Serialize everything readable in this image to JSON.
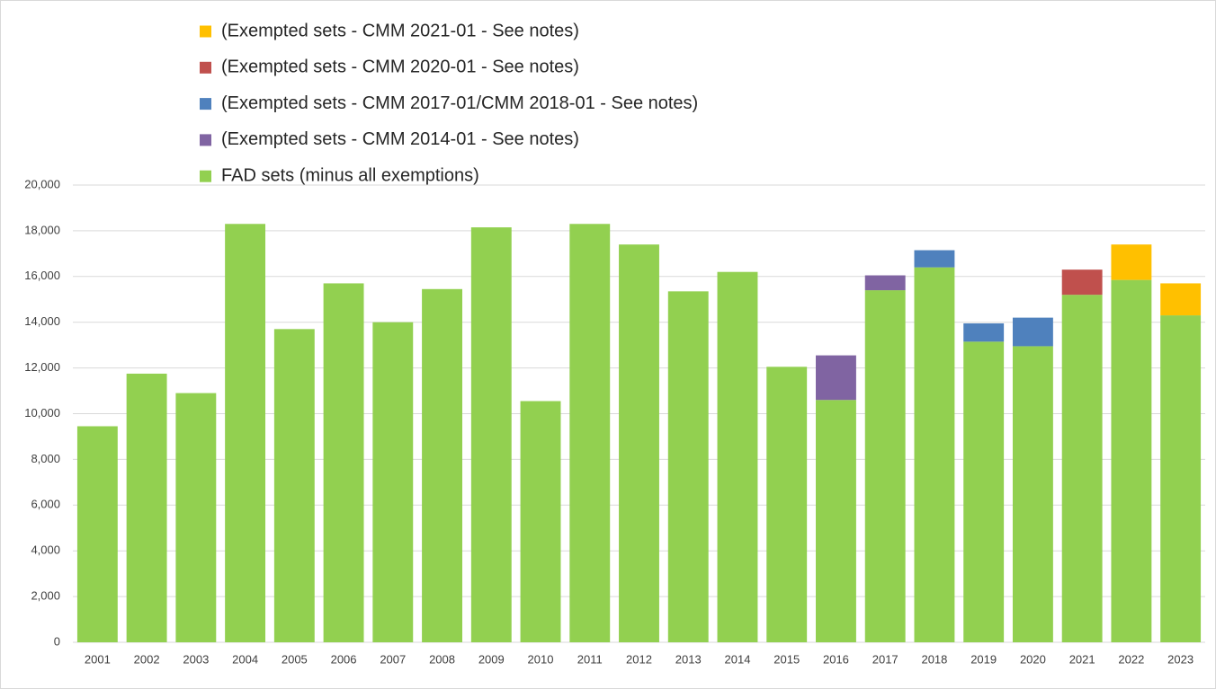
{
  "chart_data": {
    "type": "stacked-bar",
    "categories": [
      "2001",
      "2002",
      "2003",
      "2004",
      "2005",
      "2006",
      "2007",
      "2008",
      "2009",
      "2010",
      "2011",
      "2012",
      "2013",
      "2014",
      "2015",
      "2016",
      "2017",
      "2018",
      "2019",
      "2020",
      "2021",
      "2022",
      "2023"
    ],
    "series": [
      {
        "name": "FAD sets (minus all exemptions)",
        "color": "#92d050",
        "values": [
          9450,
          11750,
          10900,
          18300,
          13700,
          15700,
          14000,
          15450,
          18150,
          10550,
          18300,
          17400,
          15350,
          16200,
          12050,
          10600,
          15400,
          16400,
          13150,
          12950,
          15200,
          15850,
          14300
        ]
      },
      {
        "name": "(Exempted sets - CMM 2014-01 - See notes)",
        "color": "#8064a2",
        "values": [
          null,
          null,
          null,
          null,
          null,
          null,
          null,
          null,
          null,
          null,
          null,
          null,
          null,
          null,
          null,
          1950,
          650,
          null,
          null,
          null,
          null,
          null,
          null
        ]
      },
      {
        "name": "(Exempted sets - CMM 2017-01/CMM 2018-01 - See notes)",
        "color": "#4f81bd",
        "values": [
          null,
          null,
          null,
          null,
          null,
          null,
          null,
          null,
          null,
          null,
          null,
          null,
          null,
          null,
          null,
          null,
          null,
          750,
          800,
          1250,
          null,
          null,
          null
        ]
      },
      {
        "name": "(Exempted sets - CMM 2020-01 - See notes)",
        "color": "#c0504d",
        "values": [
          null,
          null,
          null,
          null,
          null,
          null,
          null,
          null,
          null,
          null,
          null,
          null,
          null,
          null,
          null,
          null,
          null,
          null,
          null,
          null,
          1100,
          null,
          null
        ]
      },
      {
        "name": "(Exempted sets - CMM 2021-01 - See notes)",
        "color": "#ffc000",
        "values": [
          null,
          null,
          null,
          null,
          null,
          null,
          null,
          null,
          null,
          null,
          null,
          null,
          null,
          null,
          null,
          null,
          null,
          null,
          null,
          null,
          null,
          1550,
          1400
        ]
      }
    ],
    "ylim": [
      0,
      20000
    ],
    "yticks": [
      0,
      {
        "value": 2000,
        "label": "2,000"
      },
      {
        "value": 4000,
        "label": "4,000"
      },
      {
        "value": 6000,
        "label": "6,000"
      },
      {
        "value": 8000,
        "label": "8,000"
      },
      {
        "value": 10000,
        "label": "10,000"
      },
      {
        "value": 12000,
        "label": "12,000"
      },
      {
        "value": 14000,
        "label": "14,000"
      },
      {
        "value": 16000,
        "label": "16,000"
      },
      {
        "value": 18000,
        "label": "18,000"
      },
      {
        "value": 20000,
        "label": "20,000"
      }
    ],
    "grid": true
  }
}
